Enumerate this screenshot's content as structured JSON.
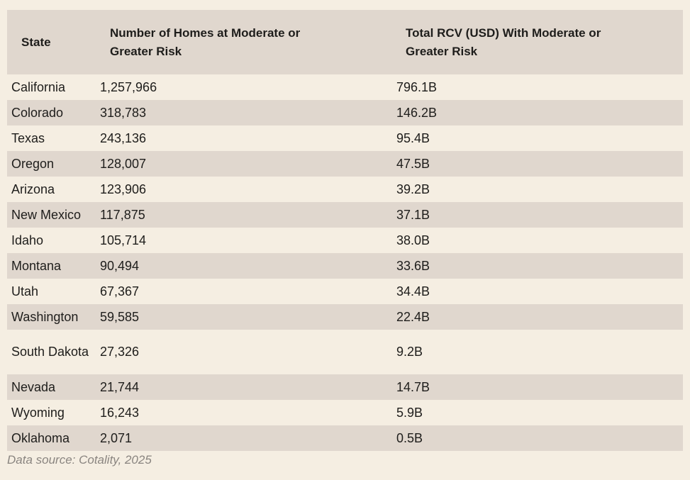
{
  "chart_data": {
    "type": "table",
    "columns": [
      "State",
      "Number of Homes at Moderate or Greater Risk",
      "Total RCV (USD) With Moderate or Greater Risk"
    ],
    "rows": [
      {
        "state": "California",
        "homes": "1,257,966",
        "rcv": "796.1B"
      },
      {
        "state": "Colorado",
        "homes": "318,783",
        "rcv": "146.2B"
      },
      {
        "state": "Texas",
        "homes": "243,136",
        "rcv": "95.4B"
      },
      {
        "state": "Oregon",
        "homes": "128,007",
        "rcv": "47.5B"
      },
      {
        "state": "Arizona",
        "homes": "123,906",
        "rcv": "39.2B"
      },
      {
        "state": "New Mexico",
        "homes": "117,875",
        "rcv": "37.1B"
      },
      {
        "state": "Idaho",
        "homes": "105,714",
        "rcv": "38.0B"
      },
      {
        "state": "Montana",
        "homes": "90,494",
        "rcv": "33.6B"
      },
      {
        "state": "Utah",
        "homes": "67,367",
        "rcv": "34.4B"
      },
      {
        "state": "Washington",
        "homes": "59,585",
        "rcv": "22.4B"
      },
      {
        "state": "South Dakota",
        "homes": "27,326",
        "rcv": "9.2B"
      },
      {
        "state": "Nevada",
        "homes": "21,744",
        "rcv": "14.7B"
      },
      {
        "state": "Wyoming",
        "homes": "16,243",
        "rcv": "5.9B"
      },
      {
        "state": "Oklahoma",
        "homes": "2,071",
        "rcv": "0.5B"
      }
    ],
    "source": "Data source: Cotality, 2025"
  },
  "colors": {
    "background": "#f5eee2",
    "stripe": "#e0d7ce",
    "text": "#1e1d1b",
    "source_text": "#8a8580"
  }
}
